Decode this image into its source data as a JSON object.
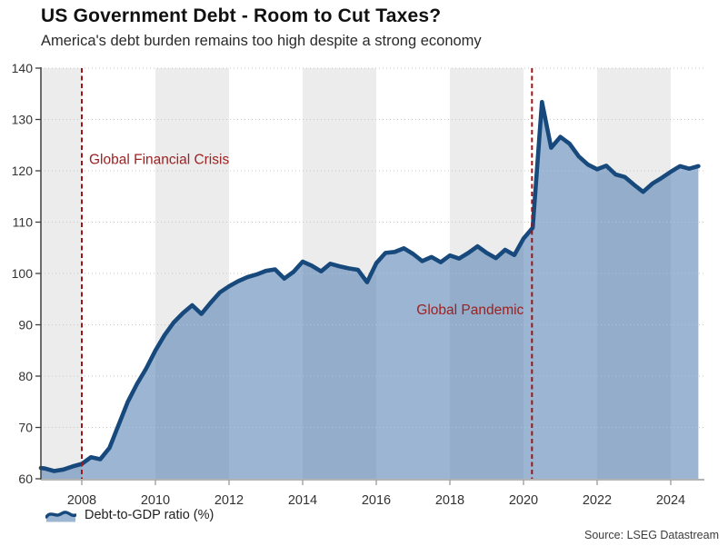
{
  "header": {
    "title": "US Government Debt - Room to Cut Taxes?",
    "subtitle": "America's debt burden remains too high despite a strong economy"
  },
  "legend": {
    "label": "Debt-to-GDP ratio (%)"
  },
  "footer": {
    "source": "Source: LSEG Datastream"
  },
  "chart_data": {
    "type": "area",
    "title": "US Government Debt - Room to Cut Taxes?",
    "subtitle": "America's debt burden remains too high despite a strong economy",
    "xlabel": "",
    "ylabel": "",
    "ylim": [
      60,
      140
    ],
    "xlim": [
      2006.89,
      2024.9
    ],
    "y_ticks": [
      60,
      70,
      80,
      90,
      100,
      110,
      120,
      130,
      140
    ],
    "x_ticks": [
      2008,
      2010,
      2012,
      2014,
      2016,
      2018,
      2020,
      2022,
      2024
    ],
    "grid": "dotted horizontal gridlines drawn over fill",
    "legend_position": "bottom-left",
    "shaded_bands": [
      [
        2006.89,
        2008
      ],
      [
        2010,
        2012
      ],
      [
        2014,
        2016
      ],
      [
        2018,
        2020
      ],
      [
        2022,
        2024
      ]
    ],
    "annotations": [
      {
        "type": "vline",
        "x": 2008,
        "text": "Global Financial Crisis",
        "side": "right",
        "label_y": 121.3
      },
      {
        "type": "vline",
        "x": 2020.23,
        "text": "Global Pandemic",
        "side": "left",
        "label_y": 92
      }
    ],
    "series": [
      {
        "name": "Debt-to-GDP ratio (%)",
        "x": [
          2006.89,
          2007.0,
          2007.25,
          2007.5,
          2007.75,
          2008.0,
          2008.25,
          2008.5,
          2008.75,
          2009.0,
          2009.25,
          2009.5,
          2009.75,
          2010.0,
          2010.25,
          2010.5,
          2010.75,
          2011.0,
          2011.25,
          2011.5,
          2011.75,
          2012.0,
          2012.25,
          2012.5,
          2012.75,
          2013.0,
          2013.25,
          2013.5,
          2013.75,
          2014.0,
          2014.25,
          2014.5,
          2014.75,
          2015.0,
          2015.25,
          2015.5,
          2015.75,
          2016.0,
          2016.25,
          2016.5,
          2016.75,
          2017.0,
          2017.25,
          2017.5,
          2017.75,
          2018.0,
          2018.25,
          2018.5,
          2018.75,
          2019.0,
          2019.25,
          2019.5,
          2019.75,
          2020.0,
          2020.25,
          2020.5,
          2020.75,
          2021.0,
          2021.25,
          2021.5,
          2021.75,
          2022.0,
          2022.25,
          2022.5,
          2022.75,
          2023.0,
          2023.25,
          2023.5,
          2023.75,
          2024.0,
          2024.25,
          2024.5,
          2024.75
        ],
        "values": [
          62.1,
          62.0,
          61.5,
          61.8,
          62.4,
          62.9,
          64.2,
          63.8,
          66.0,
          70.5,
          75.0,
          78.5,
          81.5,
          85.0,
          88.0,
          90.5,
          92.3,
          93.8,
          92.1,
          94.3,
          96.3,
          97.5,
          98.5,
          99.3,
          99.8,
          100.5,
          100.8,
          99.0,
          100.3,
          102.3,
          101.5,
          100.4,
          101.9,
          101.4,
          101.0,
          100.7,
          98.3,
          102.0,
          104.0,
          104.2,
          104.9,
          103.8,
          102.4,
          103.2,
          102.2,
          103.5,
          102.9,
          104.0,
          105.3,
          104.0,
          103.0,
          104.6,
          103.6,
          106.8,
          108.9,
          133.4,
          124.5,
          126.6,
          125.3,
          122.8,
          121.2,
          120.3,
          121.0,
          119.3,
          118.8,
          117.3,
          115.9,
          117.5,
          118.6,
          119.8,
          120.9,
          120.4,
          120.9
        ]
      }
    ],
    "colors": {
      "line": "#17497c",
      "fill": "rgba(83,128,178,0.58)",
      "band": "#ececec",
      "grid": "#c4c4c4",
      "vline": "#a01515",
      "annotation_text": "#9c2222",
      "axis_text": "#333333",
      "spine_left": "#3f3f3f",
      "spine_bottom": "#9a9a9a"
    }
  }
}
